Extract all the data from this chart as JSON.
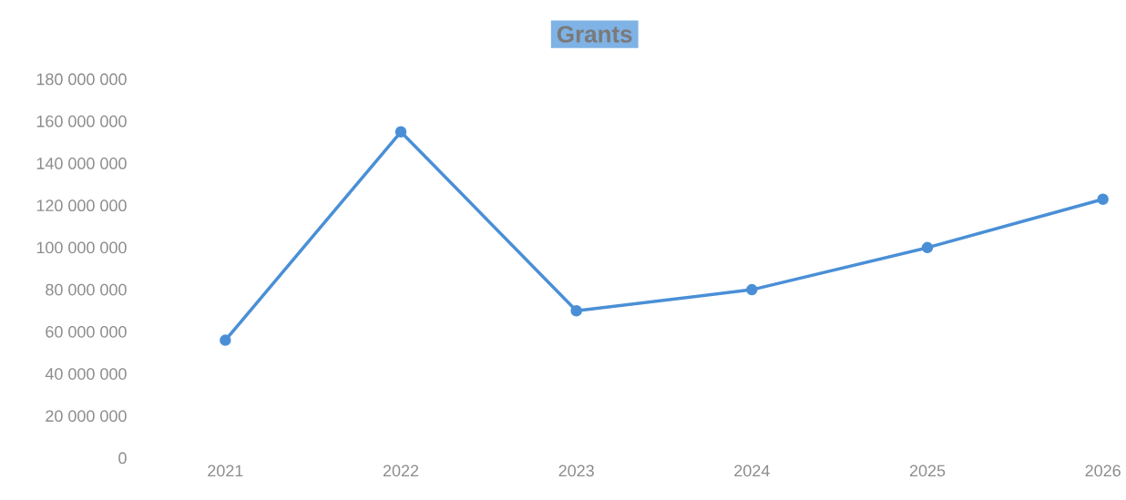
{
  "chart_data": {
    "type": "line",
    "title": "Grants",
    "categories": [
      "2021",
      "2022",
      "2023",
      "2024",
      "2025",
      "2026"
    ],
    "series": [
      {
        "color": "#4a8fd6",
        "values": [
          56000000,
          155000000,
          70000000,
          80000000,
          100000000,
          123000000
        ]
      }
    ],
    "ylim": [
      0,
      180000000
    ],
    "yticks": [
      {
        "value": 0,
        "label": "0"
      },
      {
        "value": 20000000,
        "label": "20 000 000"
      },
      {
        "value": 40000000,
        "label": "40 000 000"
      },
      {
        "value": 60000000,
        "label": "60 000 000"
      },
      {
        "value": 80000000,
        "label": "80 000 000"
      },
      {
        "value": 100000000,
        "label": "100 000 000"
      },
      {
        "value": 120000000,
        "label": "120 000 000"
      },
      {
        "value": 140000000,
        "label": "140 000 000"
      },
      {
        "value": 160000000,
        "label": "160 000 000"
      },
      {
        "value": 180000000,
        "label": "180 000 000"
      }
    ],
    "marker": "circle",
    "line_style": "solid"
  }
}
